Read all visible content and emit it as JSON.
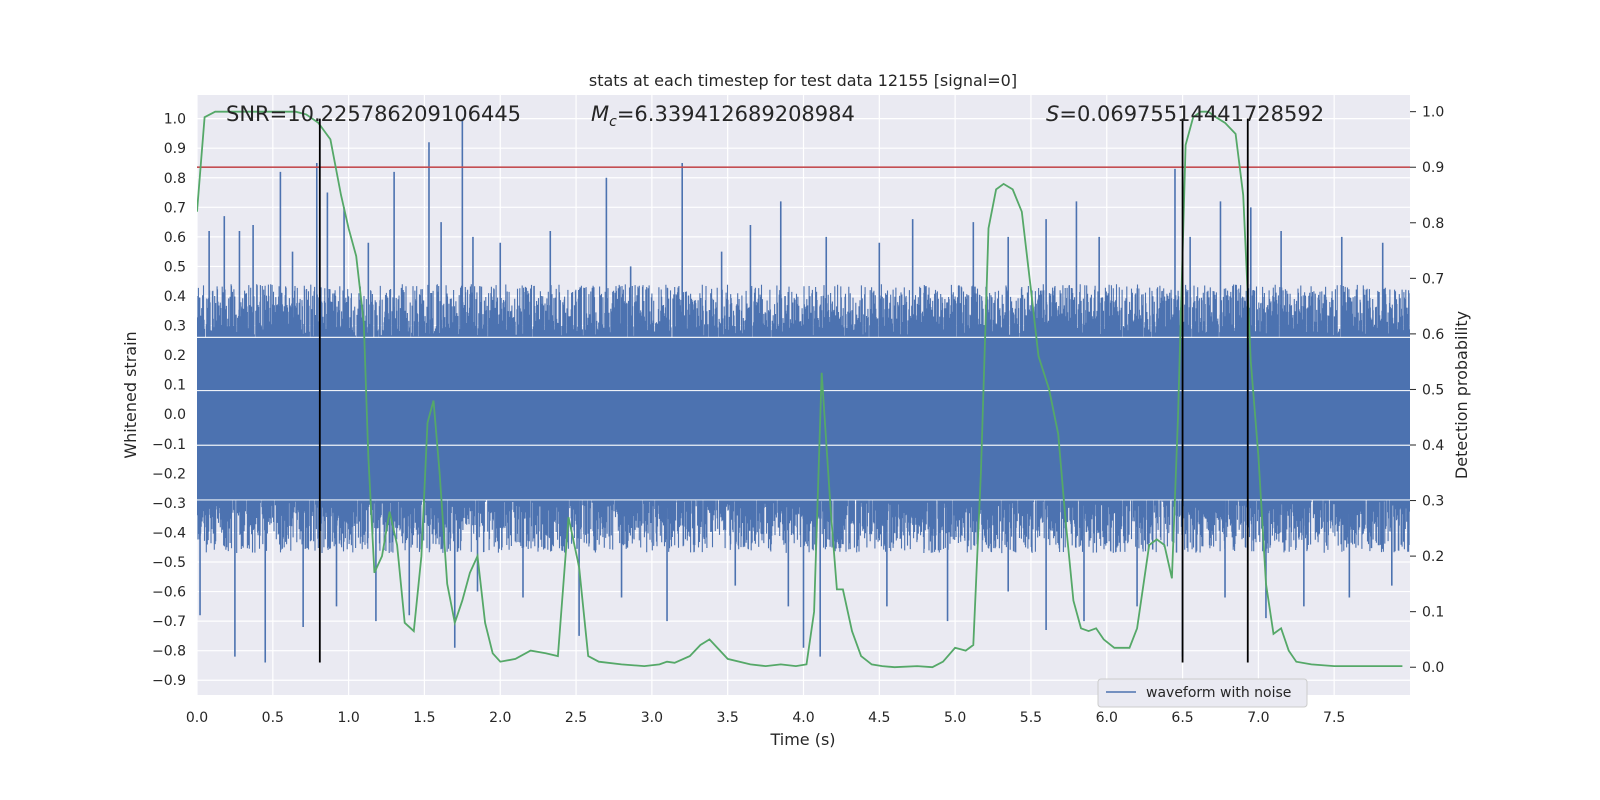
{
  "chart_data": {
    "type": "line",
    "title": "stats at each timestep for test data 12155 [signal=0]",
    "xlabel": "Time (s)",
    "ylabel_left": "Whitened strain",
    "ylabel_right": "Detection probability",
    "xlim": [
      0.0,
      8.0
    ],
    "ylim_left": [
      -0.95,
      1.08
    ],
    "ylim_right": [
      -0.05,
      1.03
    ],
    "x_ticks": [
      "0.0",
      "0.5",
      "1.0",
      "1.5",
      "2.0",
      "2.5",
      "3.0",
      "3.5",
      "4.0",
      "4.5",
      "5.0",
      "5.5",
      "6.0",
      "6.5",
      "7.0",
      "7.5"
    ],
    "y_ticks_left": [
      "-0.9",
      "-0.8",
      "-0.7",
      "-0.6",
      "-0.5",
      "-0.4",
      "-0.3",
      "-0.2",
      "-0.1",
      "0.0",
      "0.1",
      "0.2",
      "0.3",
      "0.4",
      "0.5",
      "0.6",
      "0.7",
      "0.8",
      "0.9",
      "1.0"
    ],
    "y_ticks_right": [
      "0.0",
      "0.1",
      "0.2",
      "0.3",
      "0.4",
      "0.5",
      "0.6",
      "0.7",
      "0.8",
      "0.9",
      "1.0"
    ],
    "grid": true,
    "legend_position": "lower-right",
    "annotations": {
      "snr": "SNR=10.225786209106445",
      "mc_value": "=6.339412689208984",
      "s_value": "=0.06975514441728592"
    },
    "threshold_line": {
      "axis": "right",
      "value": 0.9,
      "color": "#c44e52"
    },
    "vertical_markers": {
      "x": [
        0.81,
        6.5,
        6.93
      ],
      "y_top": 1.0,
      "y_bottom": -0.84,
      "color": "#000000"
    },
    "series": [
      {
        "name": "waveform with noise",
        "axis": "left",
        "color": "#4c72b0",
        "band_upper": 0.44,
        "band_lower": -0.47,
        "peaks_up": [
          [
            0.08,
            0.62
          ],
          [
            0.18,
            0.67
          ],
          [
            0.28,
            0.62
          ],
          [
            0.37,
            0.64
          ],
          [
            0.55,
            0.82
          ],
          [
            0.63,
            0.55
          ],
          [
            0.79,
            0.85
          ],
          [
            0.86,
            0.75
          ],
          [
            0.97,
            0.7
          ],
          [
            1.13,
            0.58
          ],
          [
            1.3,
            0.82
          ],
          [
            1.53,
            0.92
          ],
          [
            1.61,
            0.65
          ],
          [
            1.75,
            1.0
          ],
          [
            1.82,
            0.6
          ],
          [
            2.0,
            0.58
          ],
          [
            2.33,
            0.62
          ],
          [
            2.7,
            0.8
          ],
          [
            2.86,
            0.5
          ],
          [
            3.2,
            0.85
          ],
          [
            3.46,
            0.55
          ],
          [
            3.65,
            0.64
          ],
          [
            3.85,
            0.72
          ],
          [
            4.15,
            0.6
          ],
          [
            4.5,
            0.58
          ],
          [
            4.72,
            0.66
          ],
          [
            5.12,
            0.65
          ],
          [
            5.35,
            0.6
          ],
          [
            5.6,
            0.66
          ],
          [
            5.8,
            0.72
          ],
          [
            5.95,
            0.6
          ],
          [
            6.45,
            0.83
          ],
          [
            6.55,
            0.6
          ],
          [
            6.75,
            0.72
          ],
          [
            6.95,
            0.7
          ],
          [
            7.15,
            0.62
          ],
          [
            7.55,
            0.6
          ],
          [
            7.82,
            0.58
          ]
        ],
        "peaks_down": [
          [
            0.02,
            -0.68
          ],
          [
            0.25,
            -0.82
          ],
          [
            0.45,
            -0.84
          ],
          [
            0.7,
            -0.72
          ],
          [
            0.92,
            -0.65
          ],
          [
            1.18,
            -0.7
          ],
          [
            1.4,
            -0.68
          ],
          [
            1.7,
            -0.79
          ],
          [
            1.85,
            -0.6
          ],
          [
            2.15,
            -0.62
          ],
          [
            2.52,
            -0.75
          ],
          [
            2.8,
            -0.62
          ],
          [
            3.1,
            -0.7
          ],
          [
            3.55,
            -0.58
          ],
          [
            3.9,
            -0.65
          ],
          [
            4.0,
            -0.79
          ],
          [
            4.11,
            -0.82
          ],
          [
            4.55,
            -0.65
          ],
          [
            4.95,
            -0.7
          ],
          [
            5.35,
            -0.6
          ],
          [
            5.6,
            -0.73
          ],
          [
            5.85,
            -0.7
          ],
          [
            6.2,
            -0.65
          ],
          [
            6.5,
            -0.82
          ],
          [
            6.78,
            -0.62
          ],
          [
            7.05,
            -0.69
          ],
          [
            7.3,
            -0.65
          ],
          [
            7.6,
            -0.62
          ],
          [
            7.88,
            -0.58
          ]
        ]
      },
      {
        "name": "",
        "axis": "right",
        "color": "#55a868",
        "x": [
          0.0,
          0.05,
          0.12,
          0.25,
          0.4,
          0.55,
          0.65,
          0.72,
          0.8,
          0.88,
          0.95,
          1.0,
          1.05,
          1.1,
          1.13,
          1.17,
          1.22,
          1.27,
          1.32,
          1.37,
          1.43,
          1.48,
          1.52,
          1.56,
          1.6,
          1.65,
          1.7,
          1.75,
          1.8,
          1.85,
          1.9,
          1.95,
          2.0,
          2.1,
          2.2,
          2.3,
          2.38,
          2.45,
          2.52,
          2.58,
          2.65,
          2.8,
          2.95,
          3.05,
          3.1,
          3.15,
          3.25,
          3.32,
          3.38,
          3.5,
          3.65,
          3.75,
          3.85,
          3.95,
          4.02,
          4.07,
          4.12,
          4.18,
          4.22,
          4.26,
          4.32,
          4.38,
          4.45,
          4.52,
          4.6,
          4.75,
          4.85,
          4.92,
          5.0,
          5.07,
          5.12,
          5.17,
          5.22,
          5.27,
          5.32,
          5.38,
          5.44,
          5.5,
          5.55,
          5.62,
          5.68,
          5.73,
          5.78,
          5.83,
          5.88,
          5.93,
          5.98,
          6.05,
          6.15,
          6.2,
          6.28,
          6.33,
          6.38,
          6.43,
          6.47,
          6.52,
          6.57,
          6.62,
          6.67,
          6.72,
          6.78,
          6.85,
          6.9,
          6.95,
          7.0,
          7.05,
          7.1,
          7.15,
          7.2,
          7.25,
          7.35,
          7.5,
          7.7,
          7.95
        ],
        "y": [
          0.82,
          0.99,
          1.0,
          1.0,
          1.0,
          1.0,
          1.0,
          0.995,
          0.98,
          0.95,
          0.85,
          0.79,
          0.74,
          0.62,
          0.38,
          0.17,
          0.2,
          0.28,
          0.22,
          0.08,
          0.065,
          0.2,
          0.44,
          0.48,
          0.35,
          0.15,
          0.08,
          0.12,
          0.17,
          0.2,
          0.08,
          0.025,
          0.01,
          0.015,
          0.03,
          0.025,
          0.02,
          0.27,
          0.18,
          0.02,
          0.01,
          0.005,
          0.002,
          0.005,
          0.01,
          0.008,
          0.02,
          0.04,
          0.05,
          0.015,
          0.005,
          0.002,
          0.005,
          0.002,
          0.005,
          0.1,
          0.53,
          0.28,
          0.14,
          0.14,
          0.065,
          0.02,
          0.005,
          0.002,
          0.0,
          0.002,
          0.0,
          0.01,
          0.035,
          0.03,
          0.04,
          0.35,
          0.79,
          0.86,
          0.87,
          0.86,
          0.82,
          0.68,
          0.56,
          0.5,
          0.42,
          0.26,
          0.12,
          0.07,
          0.065,
          0.07,
          0.05,
          0.035,
          0.035,
          0.07,
          0.22,
          0.23,
          0.22,
          0.16,
          0.45,
          0.94,
          0.99,
          1.0,
          1.0,
          0.99,
          0.98,
          0.96,
          0.85,
          0.55,
          0.38,
          0.15,
          0.06,
          0.07,
          0.03,
          0.01,
          0.005,
          0.002,
          0.002,
          0.002
        ]
      }
    ]
  }
}
